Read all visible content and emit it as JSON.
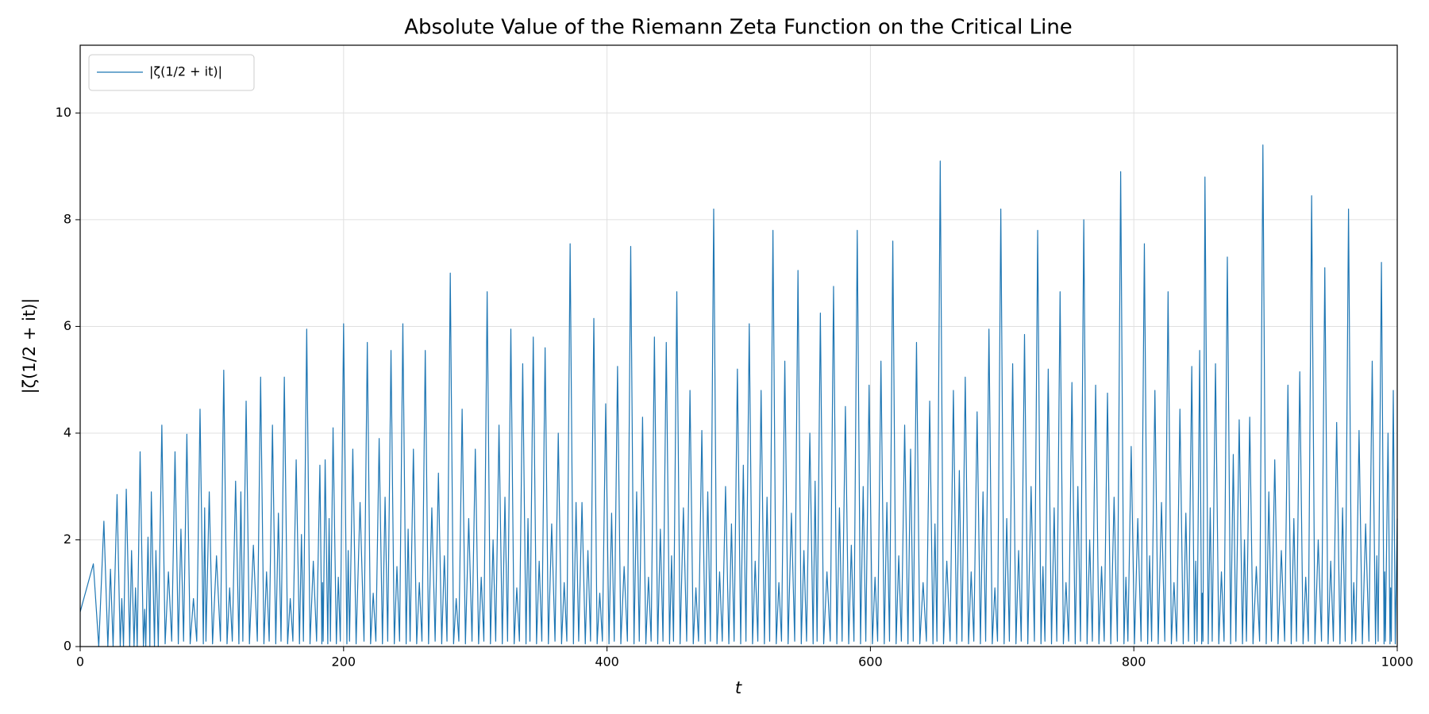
{
  "chart_data": {
    "type": "line",
    "title": "Absolute Value of the Riemann Zeta Function on the Critical Line",
    "x_label": "t",
    "y_label": "|ζ(1/2 + it)|",
    "xlim": [
      0,
      1000
    ],
    "ylim": [
      0,
      11.27
    ],
    "xticks": [
      0,
      200,
      400,
      600,
      800,
      1000
    ],
    "yticks": [
      0,
      2,
      4,
      6,
      8,
      10
    ],
    "grid": true,
    "legend": "upper left",
    "x": [
      0,
      10,
      14.1,
      18,
      21,
      23,
      25,
      28,
      30.4,
      31.6,
      32.9,
      35,
      37.6,
      39,
      40.9,
      42,
      43.3,
      45.5,
      48,
      49,
      49.8,
      51.5,
      52.9,
      54,
      56.4,
      57.5,
      59.3,
      62,
      64.5,
      67,
      69.5,
      72,
      74.5,
      76.5,
      78.5,
      81,
      83.5,
      86,
      88.5,
      91,
      93.5,
      94.5,
      95.5,
      98,
      100.5,
      103.5,
      106.5,
      109,
      111.5,
      113.5,
      115.5,
      118,
      120.5,
      122,
      123.5,
      126,
      128.5,
      131.5,
      134.5,
      137,
      139.5,
      141.5,
      143.5,
      146,
      148.5,
      150.5,
      152.5,
      155,
      157.5,
      159.5,
      161.5,
      164,
      166.5,
      168,
      169.5,
      172,
      174.5,
      177,
      179.5,
      182,
      183.5,
      184,
      184.5,
      186,
      188,
      189,
      190,
      192,
      194.5,
      196,
      197.5,
      200,
      202.5,
      203.5,
      204.5,
      207,
      209.5,
      212.5,
      215.5,
      218,
      220.5,
      222.5,
      224.5,
      227,
      229.5,
      231.5,
      233.5,
      236,
      238.5,
      240.5,
      242.5,
      245,
      247.5,
      249,
      250.5,
      253,
      255.5,
      257.5,
      259.5,
      262,
      264.5,
      267,
      269.5,
      272,
      274.5,
      276.5,
      278.5,
      281,
      283.5,
      285.5,
      287.5,
      290,
      292.5,
      295,
      297.5,
      300,
      302.5,
      304.5,
      306.5,
      309,
      311.5,
      313.5,
      315.5,
      318,
      320.5,
      322.5,
      324.5,
      327,
      329.5,
      331.5,
      333.5,
      336,
      338.5,
      340,
      341.5,
      344,
      346.5,
      348.5,
      350.5,
      353,
      355.5,
      358,
      360.5,
      363,
      365.5,
      367.5,
      369.5,
      372,
      374.5,
      376.5,
      378.5,
      381,
      383.5,
      385.5,
      387.5,
      390,
      392.5,
      394.5,
      396.5,
      399,
      401.5,
      403.5,
      405.5,
      408,
      410.5,
      413,
      415.5,
      418,
      420.5,
      422.5,
      424.5,
      427,
      429.5,
      431.5,
      433.5,
      436,
      438.5,
      440.5,
      442.5,
      445,
      447.5,
      449,
      450.5,
      453,
      455.5,
      458,
      460.5,
      463,
      465.5,
      467.5,
      469.5,
      472,
      474.5,
      476.5,
      478.5,
      481,
      483.5,
      485.5,
      487.5,
      490,
      492.5,
      494.5,
      496.5,
      499,
      501.5,
      503.5,
      505.5,
      508,
      510.5,
      512.5,
      514.5,
      517,
      519.5,
      521.5,
      523.5,
      526,
      528.5,
      530.5,
      532.5,
      535,
      537.5,
      540,
      542.5,
      545,
      547.5,
      549.5,
      551.5,
      554,
      556.5,
      558,
      559.5,
      562,
      564.5,
      567,
      569.5,
      572,
      574.5,
      576.5,
      578.5,
      581,
      583.5,
      585.5,
      587.5,
      590,
      592.5,
      594.5,
      596.5,
      599,
      601.5,
      603.5,
      605.5,
      608,
      610.5,
      612.5,
      614.5,
      617,
      619.5,
      621.5,
      623.5,
      626,
      628.5,
      630.5,
      632.5,
      635,
      637.5,
      640,
      642.5,
      645,
      647.5,
      649,
      650.5,
      653,
      655.5,
      658,
      660.5,
      663,
      665.5,
      667.5,
      669.5,
      672,
      674.5,
      676.5,
      678.5,
      681,
      683.5,
      685.5,
      687.5,
      690,
      692.5,
      694.5,
      696.5,
      699,
      701.5,
      703.5,
      705.5,
      708,
      710.5,
      712.5,
      714.5,
      717,
      719.5,
      722,
      724.5,
      727,
      729.5,
      731,
      732.5,
      735,
      737.5,
      739.5,
      741.5,
      744,
      746.5,
      748.5,
      750.5,
      753,
      755.5,
      757.5,
      759.5,
      762,
      764.5,
      766.5,
      768.5,
      771,
      773.5,
      775.5,
      777.5,
      780,
      782.5,
      785,
      787.5,
      790,
      792.5,
      794,
      795.5,
      798,
      800.5,
      803,
      805.5,
      808,
      810.5,
      812,
      813.5,
      816,
      818.5,
      821,
      823.5,
      826,
      828.5,
      830.5,
      832.5,
      835,
      837.5,
      839.5,
      841.5,
      844,
      846,
      847,
      848,
      850,
      851.5,
      852,
      852.5,
      854,
      856.5,
      858,
      859.5,
      862,
      864.5,
      866.5,
      868.5,
      871,
      873.5,
      875.5,
      877.5,
      880,
      882.5,
      884,
      885.5,
      888,
      890.5,
      893,
      895.5,
      898,
      900.5,
      902.5,
      904.5,
      907,
      909.5,
      912,
      914.5,
      917,
      919.5,
      921.5,
      923.5,
      926,
      928.5,
      930.5,
      932.5,
      935,
      937.5,
      940,
      942.5,
      945,
      947.5,
      949.5,
      951.5,
      954,
      956.5,
      958.5,
      960.5,
      963,
      965.5,
      967,
      968.5,
      971,
      973.5,
      976,
      978.5,
      981,
      983.5,
      984.5,
      985.5,
      988,
      990,
      990.5,
      991,
      993,
      994.5,
      995,
      995.5,
      997,
      998.5,
      1000
    ],
    "series": [
      {
        "name": "|ζ(1/2 + it)|",
        "color": "#1f77b4",
        "values": [
          0.65,
          1.55,
          0,
          2.35,
          0,
          1.45,
          0,
          2.85,
          0,
          0.9,
          0,
          2.95,
          0,
          1.8,
          0,
          1.1,
          0,
          3.65,
          0,
          0.7,
          0,
          2.05,
          0,
          2.9,
          0,
          1.8,
          0,
          4.15,
          0.05,
          1.4,
          0.1,
          3.65,
          0.05,
          2.2,
          0.1,
          3.98,
          0.05,
          0.9,
          0.1,
          4.45,
          0.05,
          2.6,
          0.1,
          2.9,
          0.05,
          1.7,
          0.1,
          5.18,
          0.05,
          1.1,
          0.1,
          3.1,
          0.05,
          2.9,
          0.1,
          4.6,
          0.05,
          1.9,
          0.1,
          5.05,
          0.05,
          1.4,
          0.1,
          4.15,
          0.05,
          2.5,
          0.1,
          5.05,
          0.05,
          0.9,
          0.1,
          3.5,
          0.05,
          2.1,
          0.1,
          5.95,
          0.05,
          1.6,
          0.1,
          3.4,
          0.05,
          1.2,
          0.1,
          3.5,
          0.05,
          2.4,
          0.1,
          4.1,
          0.05,
          1.3,
          0.1,
          6.05,
          0.05,
          1.8,
          0.1,
          3.7,
          0.05,
          2.7,
          0.1,
          5.7,
          0.05,
          1.0,
          0.1,
          3.9,
          0.05,
          2.8,
          0.1,
          5.55,
          0.05,
          1.5,
          0.1,
          6.05,
          0.05,
          2.2,
          0.1,
          3.7,
          0.05,
          1.2,
          0.1,
          5.55,
          0.05,
          2.6,
          0.1,
          3.25,
          0.05,
          1.7,
          0.1,
          7.0,
          0.05,
          0.9,
          0.1,
          4.45,
          0.05,
          2.4,
          0.1,
          3.7,
          0.05,
          1.3,
          0.1,
          6.65,
          0.05,
          2.0,
          0.1,
          4.15,
          0.05,
          2.8,
          0.1,
          5.95,
          0.05,
          1.1,
          0.1,
          5.3,
          0.05,
          2.4,
          0.1,
          5.8,
          0.05,
          1.6,
          0.1,
          5.6,
          0.05,
          2.3,
          0.1,
          4.0,
          0.05,
          1.2,
          0.1,
          7.55,
          0.05,
          2.7,
          0.1,
          2.7,
          0.05,
          1.8,
          0.1,
          6.15,
          0.05,
          1.0,
          0.1,
          4.55,
          0.05,
          2.5,
          0.1,
          5.25,
          0.05,
          1.5,
          0.1,
          7.5,
          0.05,
          2.9,
          0.1,
          4.3,
          0.05,
          1.3,
          0.1,
          5.8,
          0.05,
          2.2,
          0.1,
          5.7,
          0.05,
          1.7,
          0.1,
          6.65,
          0.05,
          2.6,
          0.1,
          4.8,
          0.05,
          1.1,
          0.1,
          4.05,
          0.05,
          2.9,
          0.1,
          8.2,
          0.05,
          1.4,
          0.1,
          3.0,
          0.05,
          2.3,
          0.1,
          5.2,
          0.05,
          3.4,
          0.1,
          6.05,
          0.05,
          1.6,
          0.1,
          4.8,
          0.05,
          2.8,
          0.1,
          7.8,
          0.05,
          1.2,
          0.1,
          5.35,
          0.05,
          2.5,
          0.1,
          7.05,
          0.05,
          1.8,
          0.1,
          4.0,
          0.05,
          3.1,
          0.1,
          6.25,
          0.05,
          1.4,
          0.1,
          6.75,
          0.05,
          2.6,
          0.1,
          4.5,
          0.05,
          1.9,
          0.1,
          7.8,
          0.05,
          3.0,
          0.1,
          4.9,
          0.05,
          1.3,
          0.1,
          5.35,
          0.05,
          2.7,
          0.1,
          7.6,
          0.05,
          1.7,
          0.1,
          4.15,
          0.05,
          3.7,
          0.1,
          5.7,
          0.05,
          1.2,
          0.1,
          4.6,
          0.05,
          2.3,
          0.1,
          9.1,
          0.05,
          1.6,
          0.1,
          4.8,
          0.05,
          3.3,
          0.1,
          5.05,
          0.05,
          1.4,
          0.1,
          4.4,
          0.05,
          2.9,
          0.1,
          5.95,
          0.05,
          1.1,
          0.1,
          8.2,
          0.05,
          2.4,
          0.1,
          5.3,
          0.05,
          1.8,
          0.1,
          5.85,
          0.05,
          3.0,
          0.1,
          7.8,
          0.05,
          1.5,
          0.1,
          5.2,
          0.05,
          2.6,
          0.1,
          6.65,
          0.05,
          1.2,
          0.1,
          4.95,
          0.05,
          3.0,
          0.1,
          8.0,
          0.05,
          2.0,
          0.1,
          4.9,
          0.05,
          1.5,
          0.1,
          4.75,
          0.05,
          2.8,
          0.1,
          8.9,
          0.05,
          1.3,
          0.1,
          3.75,
          0.05,
          2.4,
          0.1,
          7.55,
          0.05,
          1.7,
          0.1,
          4.8,
          0.05,
          2.7,
          0.1,
          6.65,
          0.05,
          1.2,
          0.1,
          4.45,
          0.05,
          2.5,
          0.1,
          5.25,
          0.05,
          1.6,
          0.1,
          5.55,
          0.05,
          1.0,
          0.1,
          8.8,
          0.05,
          2.6,
          0.1,
          5.3,
          0.05,
          1.4,
          0.1,
          7.3,
          0.05,
          3.6,
          0.1,
          4.25,
          0.05,
          2.0,
          0.1,
          4.3,
          0.05,
          1.5,
          0.1,
          9.4,
          0.05,
          2.9,
          0.1,
          3.5,
          0.05,
          1.8,
          0.1,
          4.9,
          0.05,
          2.4,
          0.1,
          5.15,
          0.05,
          1.3,
          0.1,
          8.45,
          0.05,
          2.0,
          0.1,
          7.1,
          0.05,
          1.6,
          0.1,
          4.2,
          0.05,
          2.6,
          0.1,
          8.2,
          0.05,
          1.2,
          0.1,
          4.05,
          0.05,
          2.3,
          0.1,
          5.35,
          0.05,
          1.7,
          0.1,
          7.2,
          0.05,
          1.4,
          0.1,
          4.0,
          0.05,
          1.1,
          0.1,
          4.8,
          0.05,
          2.4
        ]
      }
    ]
  }
}
